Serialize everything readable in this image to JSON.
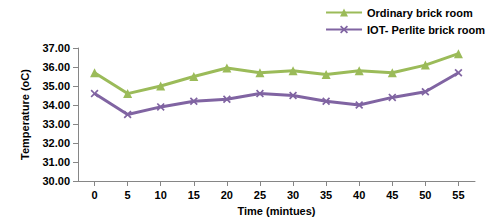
{
  "chart_data": {
    "type": "line",
    "x_label": "Time (mintues)",
    "y_label": "Temperature (oC)",
    "categories": [
      "0",
      "5",
      "10",
      "15",
      "20",
      "25",
      "30",
      "35",
      "40",
      "45",
      "50",
      "55"
    ],
    "series": [
      {
        "name": "Ordinary brick room",
        "color": "#9bbb59",
        "marker": "triangle",
        "values": [
          35.7,
          34.6,
          35.0,
          35.5,
          35.95,
          35.7,
          35.8,
          35.6,
          35.8,
          35.7,
          36.1,
          36.7
        ]
      },
      {
        "name": "IOT- Perlite brick room",
        "color": "#8064a2",
        "marker": "x",
        "values": [
          34.6,
          33.5,
          33.9,
          34.2,
          34.3,
          34.6,
          34.5,
          34.2,
          34.0,
          34.4,
          34.7,
          35.7
        ]
      }
    ],
    "ylim": [
      30,
      37
    ],
    "yticks": [
      {
        "value": 30,
        "label": "30.00"
      },
      {
        "value": 31,
        "label": "31.00"
      },
      {
        "value": 32,
        "label": "32.00"
      },
      {
        "value": 33,
        "label": "33.00"
      },
      {
        "value": 34,
        "label": "34.00"
      },
      {
        "value": 35,
        "label": "35.00"
      },
      {
        "value": 36,
        "label": "36.00"
      },
      {
        "value": 37,
        "label": "37.00"
      }
    ],
    "grid": false,
    "legend": "top-right"
  }
}
